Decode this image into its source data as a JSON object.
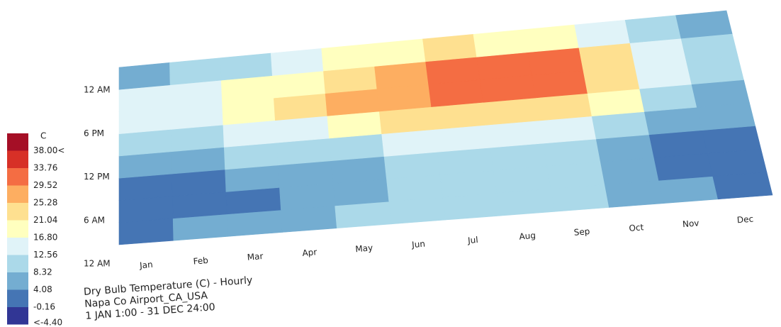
{
  "chart_data": {
    "type": "heatmap",
    "title": "Dry Bulb Temperature (C) - Hourly",
    "subtitle": "Napa Co  Airport_CA_USA",
    "period": "1 JAN 1:00 - 31 DEC 24:00",
    "categories": [
      "Jan",
      "Feb",
      "Mar",
      "Apr",
      "May",
      "Jun",
      "Jul",
      "Aug",
      "Sep",
      "Oct",
      "Nov",
      "Dec"
    ],
    "ylim": [
      0,
      24
    ],
    "yticks": [
      {
        "value": 0,
        "label": "12 AM"
      },
      {
        "value": 6,
        "label": "6 AM"
      },
      {
        "value": 12,
        "label": "12 PM"
      },
      {
        "value": 18,
        "label": "6 PM"
      },
      {
        "value": 24,
        "label": "12 AM"
      }
    ],
    "y_bins": [
      0,
      3,
      6,
      9,
      12,
      15,
      18,
      21,
      24
    ],
    "values": [
      [
        4,
        5,
        6,
        7,
        9,
        11,
        12,
        12,
        11,
        8,
        5,
        3
      ],
      [
        2,
        3,
        4,
        5,
        7,
        9,
        10,
        10,
        9,
        6,
        3,
        1
      ],
      [
        3,
        4,
        5,
        6,
        8,
        10,
        11,
        11,
        10,
        7,
        4,
        2
      ],
      [
        6,
        7,
        9,
        10,
        12,
        14,
        15,
        15,
        14,
        11,
        7,
        5
      ],
      [
        10,
        12,
        14,
        16,
        19,
        22,
        23,
        23,
        22,
        17,
        11,
        8
      ],
      [
        14,
        16,
        19,
        22,
        26,
        29,
        31,
        31,
        30,
        24,
        16,
        12
      ],
      [
        13,
        15,
        18,
        21,
        25,
        29,
        32,
        31,
        31,
        23,
        15,
        11
      ],
      [
        8,
        10,
        12,
        14,
        17,
        20,
        22,
        21,
        20,
        15,
        9,
        7
      ]
    ],
    "colorbar": {
      "unit": "C",
      "colors": [
        "#a50f26",
        "#d73027",
        "#f46d43",
        "#fdae61",
        "#fee090",
        "#ffffbf",
        "#e0f3f8",
        "#abd9e9",
        "#74add1",
        "#4575b4",
        "#313695"
      ],
      "ticks": [
        {
          "value": 38,
          "label": "38.00<"
        },
        {
          "value": 33.76,
          "label": "33.76"
        },
        {
          "value": 29.52,
          "label": "29.52"
        },
        {
          "value": 25.28,
          "label": "25.28"
        },
        {
          "value": 21.04,
          "label": "21.04"
        },
        {
          "value": 16.8,
          "label": "16.80"
        },
        {
          "value": 12.56,
          "label": "12.56"
        },
        {
          "value": 8.32,
          "label": "8.32"
        },
        {
          "value": 4.08,
          "label": "4.08"
        },
        {
          "value": -0.16,
          "label": "-0.16"
        },
        {
          "value": -4.4,
          "label": "<-4.40"
        }
      ]
    }
  }
}
